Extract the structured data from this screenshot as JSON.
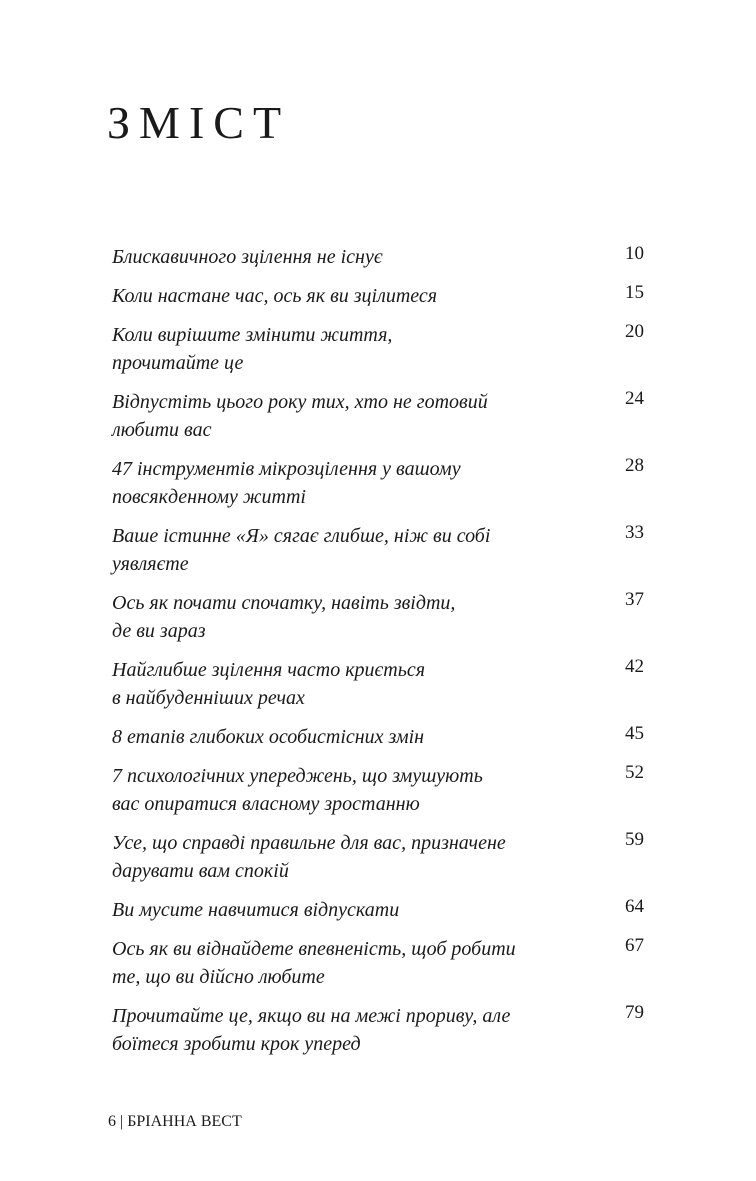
{
  "title": "ЗМІСТ",
  "entries": [
    {
      "lines": [
        "Блискавичного зцілення не існує"
      ],
      "page": "10"
    },
    {
      "lines": [
        "Коли настане час, ось як ви зцілитеся"
      ],
      "page": "15"
    },
    {
      "lines": [
        "Коли вирішите змінити життя,",
        "прочитайте це"
      ],
      "page": "20"
    },
    {
      "lines": [
        "Відпустіть цього року тих, хто не готовий",
        "любити вас"
      ],
      "page": "24"
    },
    {
      "lines": [
        "47 інструментів мікрозцілення у вашому",
        "повсякденному житті"
      ],
      "page": "28"
    },
    {
      "lines": [
        "Ваше істинне «Я» сягає глибше, ніж ви собі",
        "уявляєте"
      ],
      "page": "33"
    },
    {
      "lines": [
        "Ось як почати спочатку, навіть звідти,",
        "де ви зараз"
      ],
      "page": "37"
    },
    {
      "lines": [
        "Найглибше зцілення часто криється",
        "в найбуденніших речах"
      ],
      "page": "42"
    },
    {
      "lines": [
        "8 етапів глибоких особистісних змін"
      ],
      "page": "45"
    },
    {
      "lines": [
        "7 психологічних упереджень, що змушують",
        "вас опиратися власному зростанню"
      ],
      "page": "52"
    },
    {
      "lines": [
        "Усе, що справді правильне для вас, призначене",
        "дарувати вам спокій"
      ],
      "page": "59"
    },
    {
      "lines": [
        "Ви мусите навчитися відпускати"
      ],
      "page": "64"
    },
    {
      "lines": [
        "Ось як ви віднайдете впевненість, щоб робити",
        "те, що ви дійсно любите"
      ],
      "page": "67"
    },
    {
      "lines": [
        "Прочитайте це, якщо ви на межі прориву, але",
        "боїтеся зробити крок уперед"
      ],
      "page": "79"
    }
  ],
  "footer": "6 | БРІАННА ВЕСТ"
}
